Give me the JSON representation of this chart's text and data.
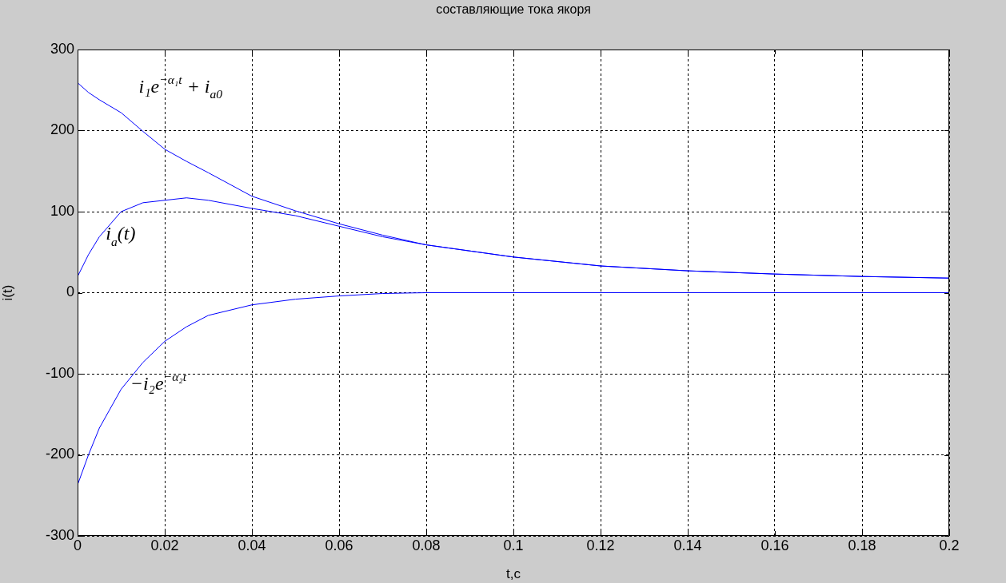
{
  "chart_data": {
    "type": "line",
    "title": "составляющие тока якоря",
    "xlabel": "t,c",
    "ylabel": "i(t)",
    "x": [
      0,
      0.0025,
      0.005,
      0.01,
      0.015,
      0.02,
      0.025,
      0.03,
      0.04,
      0.05,
      0.06,
      0.07,
      0.08,
      0.1,
      0.12,
      0.14,
      0.16,
      0.18,
      0.2
    ],
    "series": [
      {
        "name": "i₁e$^{−α₁t}$ + i$_{a0}$",
        "color": "#0000ff",
        "values": [
          259,
          247,
          238,
          222,
          199,
          177,
          162,
          148,
          119,
          101,
          85,
          71,
          59,
          44,
          33,
          27,
          23,
          20,
          18
        ]
      },
      {
        "name": "i$_{a}$(t)",
        "color": "#0000ff",
        "values": [
          20,
          47,
          69,
          100,
          111,
          114,
          117,
          114,
          104,
          95,
          82,
          69,
          59,
          44,
          33,
          27,
          23,
          20,
          18
        ]
      },
      {
        "name": "−i₂e$^{−α₂t}$",
        "color": "#0000ff",
        "values": [
          -237,
          -200,
          -167,
          -119,
          -86,
          -60,
          -42,
          -28,
          -15,
          -8,
          -4,
          -1,
          0,
          0,
          0,
          0,
          0,
          0,
          0
        ]
      }
    ],
    "xlim": [
      0,
      0.2
    ],
    "xticks": [
      0,
      0.02,
      0.04,
      0.06,
      0.08,
      0.1,
      0.12,
      0.14,
      0.16,
      0.18,
      0.2
    ],
    "ylim": [
      -300,
      300
    ],
    "yticks": [
      -300,
      -200,
      -100,
      0,
      100,
      200,
      300
    ],
    "grid": true,
    "legend": false,
    "marker": "none",
    "line_style": "solid"
  }
}
